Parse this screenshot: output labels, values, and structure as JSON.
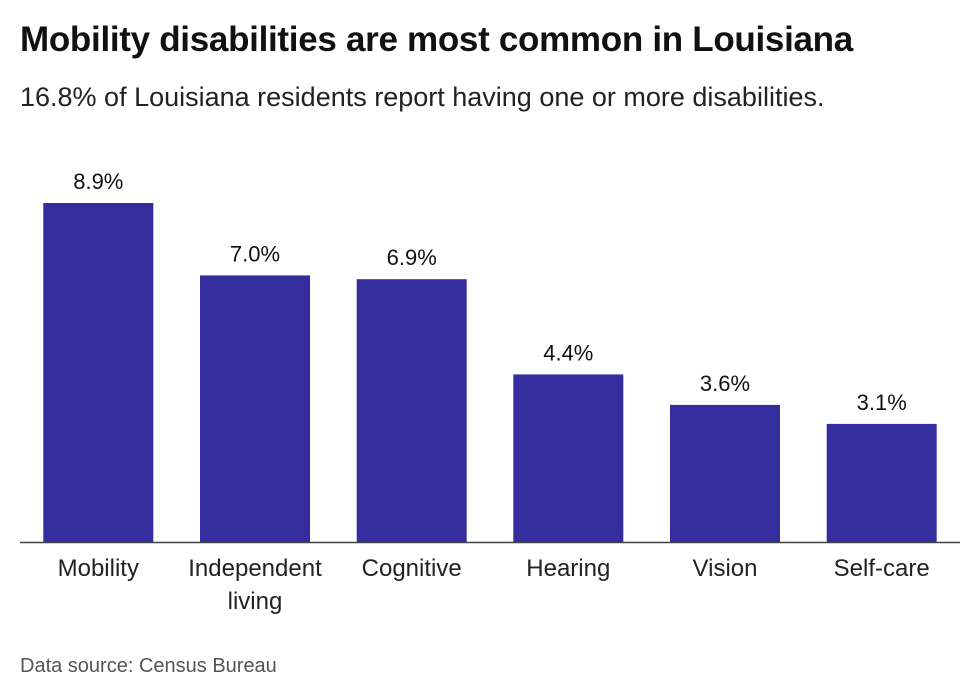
{
  "header": {
    "title": "Mobility disabilities are most common in Louisiana",
    "subtitle": "16.8% of Louisiana residents report having one or more disabilities."
  },
  "footer": {
    "source": "Data source: Census Bureau"
  },
  "colors": {
    "bar": "#332d9e",
    "axis": "#444444",
    "text": "#111111"
  },
  "chart_data": {
    "type": "bar",
    "title": "Mobility disabilities are most common in Louisiana",
    "subtitle": "16.8% of Louisiana residents report having one or more disabilities.",
    "categories": [
      [
        "Mobility"
      ],
      [
        "Independent",
        "living"
      ],
      [
        "Cognitive"
      ],
      [
        "Hearing"
      ],
      [
        "Vision"
      ],
      [
        "Self-care"
      ]
    ],
    "values": [
      8.9,
      7.0,
      6.9,
      4.4,
      3.6,
      3.1
    ],
    "data_labels": [
      "8.9%",
      "7.0%",
      "6.9%",
      "4.4%",
      "3.6%",
      "3.1%"
    ],
    "ylim": [
      0,
      8.9
    ],
    "grid": false,
    "legend": "none"
  }
}
